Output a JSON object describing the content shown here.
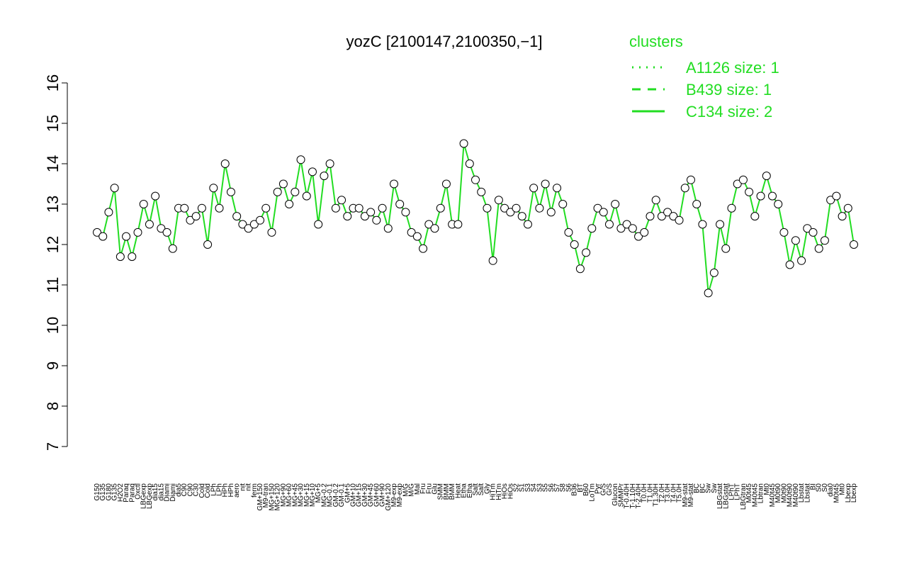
{
  "chart_data": {
    "type": "line",
    "title": "yozC [2100147,2100350,−1]",
    "ylim": [
      7,
      16
    ],
    "yticks": [
      7,
      8,
      9,
      10,
      11,
      12,
      13,
      14,
      15,
      16
    ],
    "line_color": "#22dd22",
    "marker_color": "#000000",
    "legend": {
      "title": "clusters",
      "position": "upper right",
      "color": "#22dd22",
      "entries": [
        {
          "label": "A1126 size: 1",
          "style": "dotted"
        },
        {
          "label": "B439 size: 1",
          "style": "dashed"
        },
        {
          "label": "C134 size: 2",
          "style": "solid"
        }
      ]
    },
    "categories": [
      "G150",
      "G135",
      "G180",
      "G135",
      "H2O2",
      "Paraq",
      "Paraq",
      "Oxctl",
      "LBGexp",
      "LBGexp",
      "dia15",
      "dia15",
      "Diami",
      "Diami",
      "dia5",
      "C90",
      "C90",
      "C30",
      "Cold",
      "Cold",
      "LPh",
      "LPh",
      "HPh",
      "HPh",
      "aero",
      "nit",
      "nit",
      "ferm",
      "GM+150",
      "M9-tran",
      "MG+150",
      "MG+120",
      "MG+90",
      "MG+60",
      "MG+45",
      "MG+30",
      "MG+15",
      "MG+10",
      "MG+5",
      "MG-0.2",
      "MG-0.1",
      "GM-0.2",
      "GM-0.1",
      "GM+5",
      "GM+10",
      "GM+15",
      "GM+30",
      "GM+45",
      "GM+60",
      "GM+90",
      "GM+120",
      "M9-exp",
      "M9-exp",
      "M/G",
      "M/G",
      "Mal",
      "Fru",
      "Fru",
      "Glu",
      "SMM",
      "BMM",
      "BMM",
      "Heat",
      "Etha",
      "Etha",
      "Salt",
      "Salt",
      "Gly",
      "HiTm",
      "HiTm",
      "HiOs",
      "HiOs",
      "S2",
      "S1",
      "S3",
      "S4",
      "S3",
      "S5",
      "S6",
      "S7",
      "S8",
      "S6",
      "B36",
      "BT",
      "B60",
      "LoTm",
      "Pyr",
      "G/S",
      "G/S",
      "Glucon",
      "SMMPr",
      "T-0.40H",
      "T-1.10H",
      "T-2.40H",
      "T0.0H",
      "T1.0H",
      "T1.30H",
      "T2.0H",
      "T3.0H",
      "T4.0H",
      "T5.0H",
      "M9-stat",
      "M9-stat",
      "BC",
      "BC",
      "Sw",
      "Sw",
      "LBGstat",
      "LBGstat",
      "LPhT",
      "LPhT",
      "LBGtran",
      "M0t45",
      "M40t45",
      "Lbtran",
      "Mt0",
      "M40t45",
      "M0t90",
      "M0t90",
      "M40t90",
      "M40t90",
      "Lbstat",
      "Lbstat",
      "BI",
      "S0",
      "S0",
      "dia0",
      "M0t45",
      "Mt0",
      "Lbexp",
      "Lbexp"
    ],
    "values": [
      12.3,
      12.2,
      12.8,
      13.4,
      11.7,
      12.2,
      11.7,
      12.3,
      13.0,
      12.5,
      13.2,
      12.4,
      12.3,
      11.9,
      12.9,
      12.9,
      12.6,
      12.7,
      12.9,
      12.0,
      13.4,
      12.9,
      14.0,
      13.3,
      12.7,
      12.5,
      12.4,
      12.5,
      12.6,
      12.9,
      12.3,
      13.3,
      13.5,
      13.0,
      13.3,
      14.1,
      13.2,
      13.8,
      12.5,
      13.7,
      14.0,
      12.9,
      13.1,
      12.7,
      12.9,
      12.9,
      12.7,
      12.8,
      12.6,
      12.9,
      12.4,
      13.5,
      13.0,
      12.8,
      12.3,
      12.2,
      11.9,
      12.5,
      12.4,
      12.9,
      13.5,
      12.5,
      12.5,
      14.5,
      14.0,
      13.6,
      13.3,
      12.9,
      11.6,
      13.1,
      12.9,
      12.8,
      12.9,
      12.7,
      12.5,
      13.4,
      12.9,
      13.5,
      12.8,
      13.4,
      13.0,
      12.3,
      12.0,
      11.4,
      11.8,
      12.4,
      12.9,
      12.8,
      12.5,
      13.0,
      12.4,
      12.5,
      12.4,
      12.2,
      12.3,
      12.7,
      13.1,
      12.7,
      12.8,
      12.7,
      12.6,
      13.4,
      13.6,
      13.0,
      12.5,
      10.8,
      11.3,
      12.5,
      11.9,
      12.9,
      13.5,
      13.6,
      13.3,
      12.7,
      13.2,
      13.7,
      13.2,
      13.0,
      12.3,
      11.5,
      12.1,
      11.6,
      12.4,
      12.3,
      11.9,
      12.1,
      13.1,
      13.2,
      12.7,
      12.9,
      12.0
    ]
  }
}
